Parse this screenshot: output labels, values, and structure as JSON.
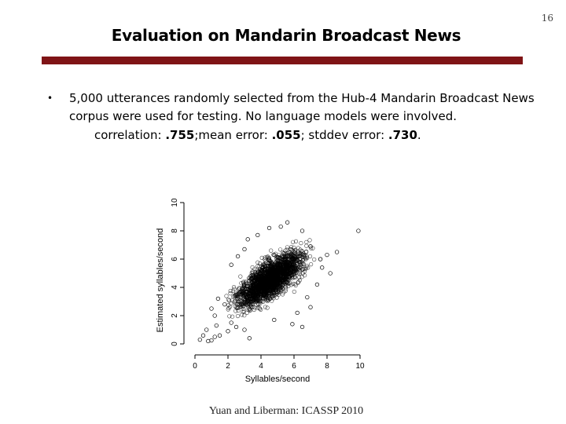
{
  "slide": {
    "page_number": "16",
    "title": "Evaluation on Mandarin Broadcast News",
    "bullet_symbol": "•",
    "bullet_text": "5,000 utterances randomly selected from the Hub-4 Mandarin Broadcast News corpus were used for testing. No language models were involved.",
    "stats": {
      "correlation_label": "correlation: ",
      "correlation_value": ".755",
      "mean_label": ";mean error: ",
      "mean_value": ".055",
      "stddev_label": "; stddev error: ",
      "stddev_value": ".730",
      "end": "."
    },
    "caption": "Yuan and Liberman: ICASSP 2010",
    "accent_color": "#7f1416"
  },
  "chart_data": {
    "type": "scatter",
    "xlabel": "Syllables/second",
    "ylabel": "Estimated syllables/second",
    "xlim": [
      0,
      10
    ],
    "ylim": [
      0,
      10
    ],
    "xticks": [
      "0",
      "2",
      "4",
      "6",
      "8",
      "10"
    ],
    "yticks": [
      "0",
      "2",
      "4",
      "6",
      "8",
      "10"
    ],
    "marker": "open-circle",
    "marker_color": "#000000",
    "n_points": 5000,
    "correlation": 0.755,
    "mean_error": 0.055,
    "stddev_error": 0.73,
    "cluster_center": [
      4.6,
      4.6
    ],
    "outliers": [
      [
        0.3,
        0.3
      ],
      [
        0.5,
        0.6
      ],
      [
        0.8,
        0.2
      ],
      [
        1.0,
        0.25
      ],
      [
        1.2,
        0.5
      ],
      [
        1.5,
        0.6
      ],
      [
        0.7,
        1.0
      ],
      [
        1.3,
        1.3
      ],
      [
        1.0,
        2.5
      ],
      [
        1.2,
        2.0
      ],
      [
        1.4,
        3.2
      ],
      [
        2.0,
        0.9
      ],
      [
        2.2,
        1.5
      ],
      [
        1.8,
        2.8
      ],
      [
        2.5,
        1.2
      ],
      [
        3.0,
        1.0
      ],
      [
        3.3,
        0.4
      ],
      [
        2.2,
        5.6
      ],
      [
        2.6,
        6.2
      ],
      [
        3.0,
        6.7
      ],
      [
        3.2,
        7.4
      ],
      [
        3.8,
        7.7
      ],
      [
        4.5,
        8.2
      ],
      [
        5.2,
        8.3
      ],
      [
        5.6,
        8.6
      ],
      [
        6.5,
        8.0
      ],
      [
        7.0,
        6.9
      ],
      [
        7.6,
        6.0
      ],
      [
        8.2,
        5.0
      ],
      [
        8.0,
        6.3
      ],
      [
        9.9,
        8.0
      ],
      [
        7.4,
        4.2
      ],
      [
        6.8,
        3.3
      ],
      [
        7.0,
        2.6
      ],
      [
        6.2,
        2.2
      ],
      [
        5.9,
        1.4
      ],
      [
        4.8,
        1.7
      ],
      [
        6.5,
        1.2
      ],
      [
        7.7,
        5.4
      ],
      [
        8.6,
        6.5
      ]
    ]
  }
}
